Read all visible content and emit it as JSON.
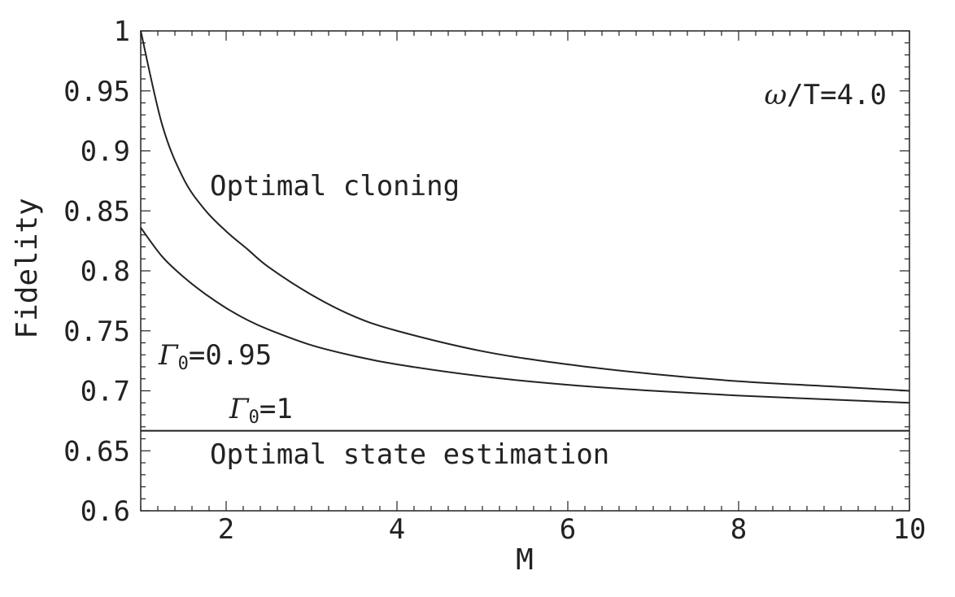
{
  "chart_data": {
    "type": "line",
    "title": "",
    "xlabel": "M",
    "ylabel": "Fidelity",
    "xlim": [
      1,
      10
    ],
    "ylim": [
      0.6,
      1.0
    ],
    "grid": false,
    "x_ticks": [
      "2",
      "4",
      "6",
      "8",
      "10"
    ],
    "y_ticks": [
      "0.6",
      "0.65",
      "0.7",
      "0.75",
      "0.8",
      "0.85",
      "0.9",
      "0.95",
      "1"
    ],
    "series": [
      {
        "name": "Optimal cloning",
        "x": [
          1,
          1.25,
          1.5,
          1.75,
          2,
          2.25,
          2.5,
          3,
          3.5,
          4,
          5,
          6,
          7,
          8,
          9,
          10
        ],
        "y": [
          1.0,
          0.922,
          0.877,
          0.851,
          0.833,
          0.818,
          0.803,
          0.78,
          0.762,
          0.75,
          0.733,
          0.722,
          0.714,
          0.708,
          0.704,
          0.7
        ]
      },
      {
        "name": "Γ0=0.95",
        "x": [
          1,
          1.25,
          1.5,
          1.75,
          2,
          2.25,
          2.5,
          3,
          3.5,
          4,
          5,
          6,
          7,
          8,
          9,
          10
        ],
        "y": [
          0.836,
          0.812,
          0.795,
          0.781,
          0.769,
          0.759,
          0.751,
          0.738,
          0.729,
          0.722,
          0.712,
          0.705,
          0.7,
          0.696,
          0.693,
          0.69
        ]
      },
      {
        "name": "Γ0=1",
        "x": [
          1,
          10
        ],
        "y": [
          0.6667,
          0.6667
        ]
      }
    ],
    "annotations": {
      "omega_ratio": {
        "prefix": "ω",
        "text": "/T=4.0"
      },
      "optimal_cloning": "Optimal cloning",
      "gamma_095": {
        "symbol": "Γ",
        "sub": "0",
        "text": "=0.95"
      },
      "gamma_1": {
        "symbol": "Γ",
        "sub": "0",
        "text": "=1"
      },
      "optimal_state_estimation": "Optimal state estimation"
    }
  }
}
